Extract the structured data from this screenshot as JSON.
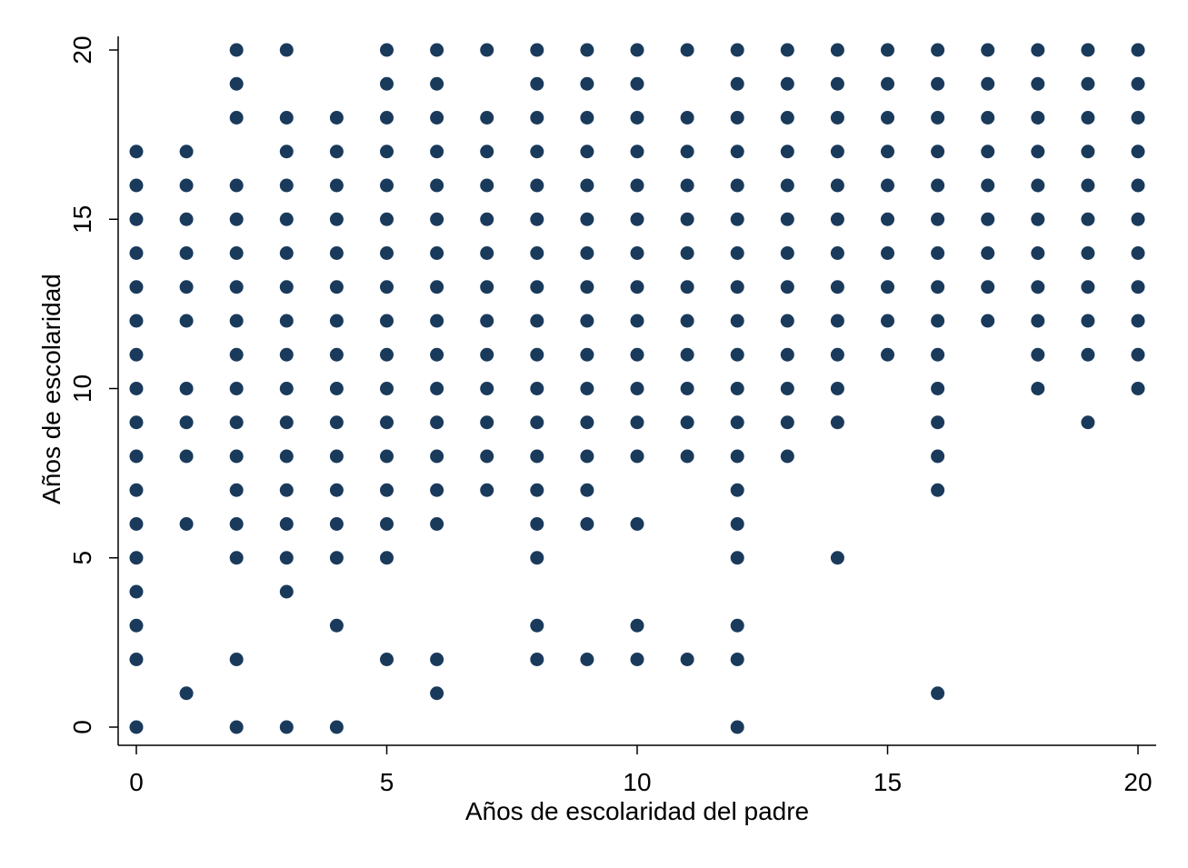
{
  "chart_data": {
    "type": "scatter",
    "title": "",
    "xlabel": "Años de escolaridad del padre",
    "ylabel": "Años de escolaridad",
    "xlim": [
      0,
      20
    ],
    "ylim": [
      0,
      20
    ],
    "xticks": [
      0,
      5,
      10,
      15,
      20
    ],
    "yticks": [
      0,
      5,
      10,
      15,
      20
    ],
    "grid": false,
    "marker_color": "#1a3a5c",
    "columns": [
      {
        "x": 0,
        "y": [
          0,
          2,
          3,
          4,
          5,
          6,
          7,
          8,
          9,
          10,
          11,
          12,
          13,
          14,
          15,
          16,
          17
        ]
      },
      {
        "x": 1,
        "y": [
          1,
          6,
          8,
          9,
          10,
          12,
          13,
          14,
          15,
          16,
          17
        ]
      },
      {
        "x": 2,
        "y": [
          0,
          2,
          5,
          6,
          7,
          8,
          9,
          10,
          11,
          12,
          13,
          14,
          15,
          16,
          18,
          19,
          20
        ]
      },
      {
        "x": 3,
        "y": [
          0,
          4,
          5,
          6,
          7,
          8,
          9,
          10,
          11,
          12,
          13,
          14,
          15,
          16,
          17,
          18,
          20
        ]
      },
      {
        "x": 4,
        "y": [
          0,
          3,
          5,
          6,
          7,
          8,
          9,
          10,
          11,
          12,
          13,
          14,
          15,
          16,
          17,
          18
        ]
      },
      {
        "x": 5,
        "y": [
          2,
          5,
          6,
          7,
          8,
          9,
          10,
          11,
          12,
          13,
          14,
          15,
          16,
          17,
          18,
          19,
          20
        ]
      },
      {
        "x": 6,
        "y": [
          1,
          2,
          6,
          7,
          8,
          9,
          10,
          11,
          12,
          13,
          14,
          15,
          16,
          17,
          18,
          19,
          20
        ]
      },
      {
        "x": 7,
        "y": [
          7,
          8,
          9,
          10,
          11,
          12,
          13,
          14,
          15,
          16,
          17,
          18,
          20
        ]
      },
      {
        "x": 8,
        "y": [
          2,
          3,
          5,
          6,
          7,
          8,
          9,
          10,
          11,
          12,
          13,
          14,
          15,
          16,
          17,
          18,
          19,
          20
        ]
      },
      {
        "x": 9,
        "y": [
          2,
          6,
          7,
          8,
          9,
          10,
          11,
          12,
          13,
          14,
          15,
          16,
          17,
          18,
          19,
          20
        ]
      },
      {
        "x": 10,
        "y": [
          2,
          3,
          6,
          8,
          9,
          10,
          11,
          12,
          13,
          14,
          15,
          16,
          17,
          18,
          19,
          20
        ]
      },
      {
        "x": 11,
        "y": [
          2,
          8,
          9,
          10,
          11,
          12,
          13,
          14,
          15,
          16,
          17,
          18,
          20
        ]
      },
      {
        "x": 12,
        "y": [
          0,
          2,
          3,
          5,
          6,
          7,
          8,
          9,
          10,
          11,
          12,
          13,
          14,
          15,
          16,
          17,
          18,
          19,
          20
        ]
      },
      {
        "x": 13,
        "y": [
          8,
          9,
          10,
          11,
          12,
          13,
          14,
          15,
          16,
          17,
          18,
          19,
          20
        ]
      },
      {
        "x": 14,
        "y": [
          5,
          9,
          10,
          11,
          12,
          13,
          14,
          15,
          16,
          17,
          18,
          19,
          20
        ]
      },
      {
        "x": 15,
        "y": [
          11,
          12,
          13,
          14,
          15,
          16,
          17,
          18,
          19,
          20
        ]
      },
      {
        "x": 16,
        "y": [
          1,
          7,
          8,
          9,
          10,
          11,
          12,
          13,
          14,
          15,
          16,
          17,
          18,
          19,
          20
        ]
      },
      {
        "x": 17,
        "y": [
          12,
          13,
          14,
          15,
          16,
          17,
          18,
          19,
          20
        ]
      },
      {
        "x": 18,
        "y": [
          10,
          11,
          12,
          13,
          14,
          15,
          16,
          17,
          18,
          19,
          20
        ]
      },
      {
        "x": 19,
        "y": [
          9,
          11,
          12,
          13,
          14,
          15,
          16,
          17,
          18,
          19,
          20
        ]
      },
      {
        "x": 20,
        "y": [
          10,
          11,
          12,
          13,
          14,
          15,
          16,
          17,
          18,
          19,
          20
        ]
      }
    ]
  }
}
